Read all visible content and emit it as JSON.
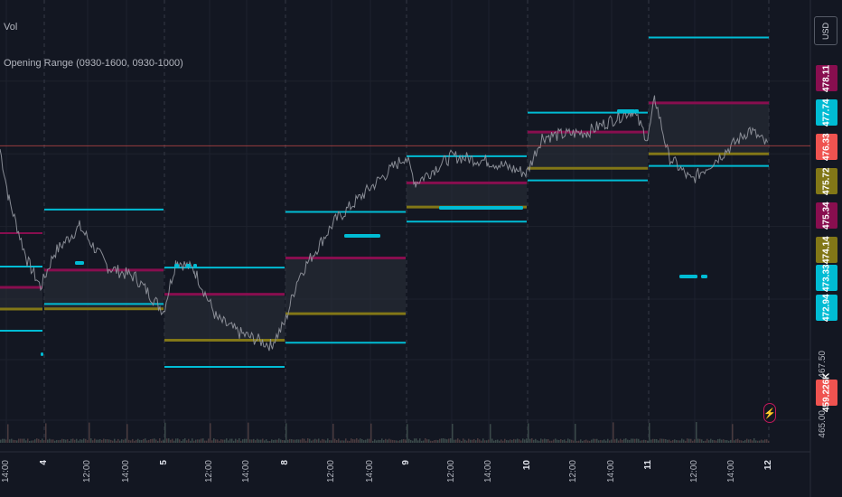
{
  "legend": {
    "vol": "Vol",
    "indicator": "Opening Range (0930-1600, 0930-1000)"
  },
  "currency_button": "USD",
  "price_labels": [
    {
      "text": "478.11",
      "color": "#880e4f",
      "boxed": true
    },
    {
      "text": "477.74",
      "color": "#00bcd4",
      "boxed": true
    },
    {
      "text": "476.33",
      "color": "#ef5350",
      "boxed": true
    },
    {
      "text": "475.72",
      "color": "#827717",
      "boxed": true
    },
    {
      "text": "475.34",
      "color": "#880e4f",
      "boxed": true
    },
    {
      "text": "474.14",
      "color": "#827717",
      "boxed": true
    },
    {
      "text": "473.33",
      "color": "#00bcd4",
      "boxed": true
    },
    {
      "text": "472.94",
      "color": "#00bcd4",
      "boxed": true
    },
    {
      "text": "467.50",
      "color": "",
      "boxed": false
    },
    {
      "text": "459.226K",
      "color": "#ef5350",
      "boxed": true
    },
    {
      "text": "465.00",
      "color": "",
      "boxed": false
    }
  ],
  "x_ticks": [
    {
      "text": "14:00",
      "major": false
    },
    {
      "text": "4",
      "major": true
    },
    {
      "text": "12:00",
      "major": false
    },
    {
      "text": "14:00",
      "major": false
    },
    {
      "text": "5",
      "major": true
    },
    {
      "text": "12:00",
      "major": false
    },
    {
      "text": "14:00",
      "major": false
    },
    {
      "text": "8",
      "major": true
    },
    {
      "text": "12:00",
      "major": false
    },
    {
      "text": "14:00",
      "major": false
    },
    {
      "text": "9",
      "major": true
    },
    {
      "text": "12:00",
      "major": false
    },
    {
      "text": "14:00",
      "major": false
    },
    {
      "text": "10",
      "major": true
    },
    {
      "text": "12:00",
      "major": false
    },
    {
      "text": "14:00",
      "major": false
    },
    {
      "text": "11",
      "major": true
    },
    {
      "text": "12:00",
      "major": false
    },
    {
      "text": "14:00",
      "major": false
    },
    {
      "text": "12",
      "major": true
    }
  ],
  "colors": {
    "background": "#131722",
    "grid": "#1e222d",
    "high_low": "#00bcd4",
    "range_high": "#880e4f",
    "range_low": "#827717",
    "last_price": "#ef5350",
    "price_line": "#9598a1"
  },
  "chart_data": {
    "type": "line",
    "title": "",
    "x_unit": "trading day",
    "y_unit": "USD",
    "ylim": [
      464.5,
      481.5
    ],
    "days": [
      {
        "day": "4",
        "day_high": 473.7,
        "day_low": 469.8,
        "or_high": 471.2,
        "or_low": 469.6,
        "close": 470.3
      },
      {
        "day": "5",
        "day_high": 471.3,
        "day_low": 467.2,
        "or_high": 470.2,
        "or_low": 468.3,
        "close": 468.9
      },
      {
        "day": "8",
        "day_high": 473.6,
        "day_low": 468.2,
        "or_high": 471.7,
        "or_low": 469.4,
        "close": 474.8
      },
      {
        "day": "9",
        "day_high": 475.9,
        "day_low": 473.2,
        "or_high": 474.8,
        "or_low": 473.8,
        "close": 475.4
      },
      {
        "day": "10",
        "day_high": 477.7,
        "day_low": 474.9,
        "or_high": 476.9,
        "or_low": 475.4,
        "close": 477.3
      },
      {
        "day": "11",
        "day_high": 480.8,
        "day_low": 475.5,
        "or_high": 478.1,
        "or_low": 476.0,
        "close": 476.3
      }
    ],
    "last_price": 476.33,
    "volume_label": "459.226K"
  }
}
